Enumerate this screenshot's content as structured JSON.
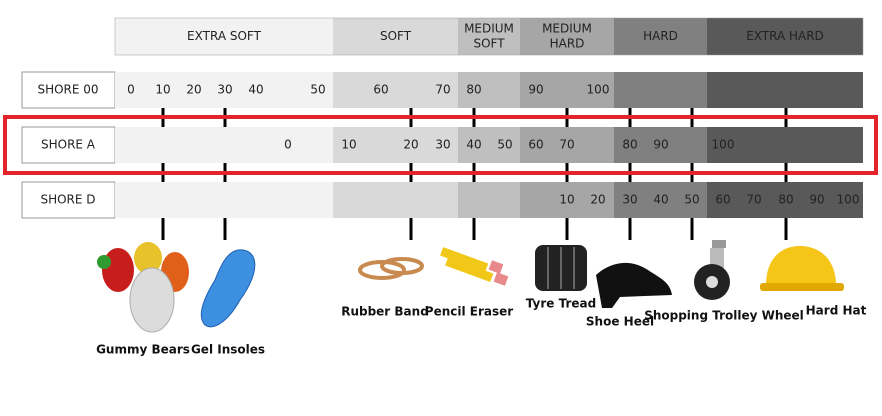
{
  "header": {
    "bands": [
      {
        "lines": [
          "EXTRA SOFT"
        ]
      },
      {
        "lines": [
          "SOFT"
        ]
      },
      {
        "lines": [
          "MEDIUM",
          "SOFT"
        ]
      },
      {
        "lines": [
          "MEDIUM",
          "HARD"
        ]
      },
      {
        "lines": [
          "HARD"
        ]
      },
      {
        "lines": [
          "EXTRA HARD"
        ]
      }
    ]
  },
  "rows": [
    {
      "name": "SHORE 00",
      "ticks": [
        0,
        10,
        20,
        30,
        40,
        50,
        60,
        70,
        80,
        90,
        100
      ]
    },
    {
      "name": "SHORE A",
      "ticks": [
        0,
        10,
        20,
        30,
        40,
        50,
        60,
        70,
        80,
        90,
        100
      ]
    },
    {
      "name": "SHORE D",
      "ticks": [
        10,
        20,
        30,
        40,
        50,
        60,
        70,
        80,
        90,
        100
      ]
    }
  ],
  "examples": [
    {
      "label": "Gummy Bears"
    },
    {
      "label": "Gel Insoles"
    },
    {
      "label": "Rubber Band"
    },
    {
      "label": "Pencil Eraser"
    },
    {
      "label": "Tyre Tread"
    },
    {
      "label": "Shoe Heel"
    },
    {
      "label": "Shopping Trolley Wheel"
    },
    {
      "label": "Hard Hat"
    }
  ]
}
